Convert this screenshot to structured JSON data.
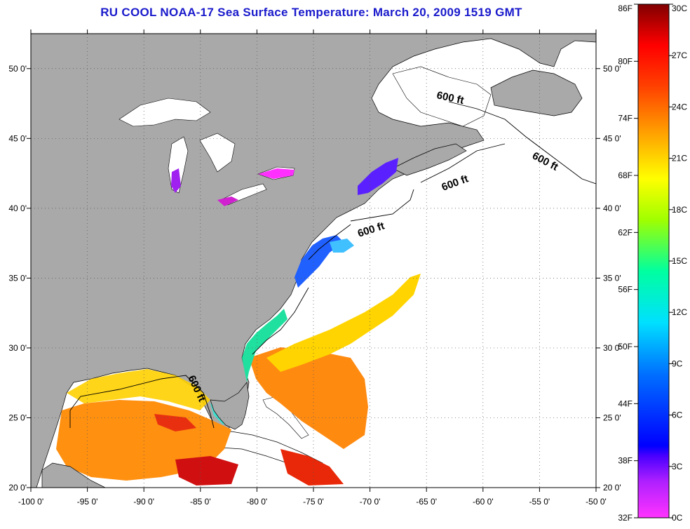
{
  "title": "RU COOL  NOAA-17  Sea Surface Temperature:  March 20, 2009 1519 GMT",
  "map": {
    "lon_range": [
      -100,
      -50
    ],
    "lat_range": [
      20,
      52.5
    ],
    "lon_ticks": [
      "-100 0'",
      "-95 0'",
      "-90 0'",
      "-85 0'",
      "-80 0'",
      "-75 0'",
      "-70 0'",
      "-65 0'",
      "-60 0'",
      "-55 0'",
      "-50 0'"
    ],
    "lat_ticks": [
      "20 0'",
      "25 0'",
      "30 0'",
      "35 0'",
      "40 0'",
      "45 0'",
      "50 0'"
    ],
    "land_color": "#a9a9a9",
    "contour_labels": [
      "600 ft",
      "600 ft",
      "600 ft",
      "600 ft",
      "600 ft"
    ]
  },
  "colorbar": {
    "fahrenheit_labels": [
      "86F",
      "80F",
      "74F",
      "68F",
      "62F",
      "56F",
      "50F",
      "44F",
      "38F",
      "32F"
    ],
    "celsius_labels": [
      "30C",
      "27C",
      "24C",
      "21C",
      "18C",
      "15C",
      "12C",
      "9C",
      "6C",
      "3C",
      "0C"
    ],
    "colors": [
      "#ff00ff",
      "#7f00ff",
      "#0000ff",
      "#0080ff",
      "#00ffff",
      "#00ff80",
      "#80ff00",
      "#ffff00",
      "#ff8000",
      "#ff0000",
      "#800000"
    ]
  }
}
